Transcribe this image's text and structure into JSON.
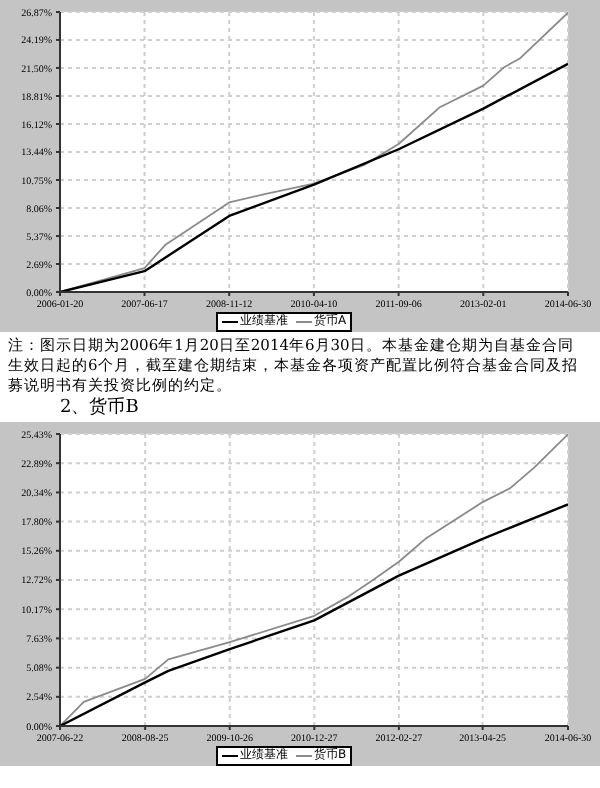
{
  "chart_data": [
    {
      "type": "line",
      "x": [
        "2006-01-20",
        "2007-06-17",
        "2007-10-20",
        "2008-11-12",
        "2009-06-15",
        "2010-04-10",
        "2011-02-10",
        "2011-09-06",
        "2012-05-10",
        "2013-02-01",
        "2013-06-10",
        "2013-09-10",
        "2014-06-30"
      ],
      "series": [
        {
          "name": "货币A",
          "color": "#8a8a8a",
          "values": [
            0,
            2.3,
            4.5,
            8.6,
            9.4,
            10.4,
            12.2,
            14.2,
            17.7,
            19.8,
            21.6,
            22.4,
            26.8
          ]
        },
        {
          "name": "业绩基准",
          "color": "#000000",
          "x": [
            "2006-01-20",
            "2007-06-17",
            "2008-11-12",
            "2010-04-10",
            "2011-09-06",
            "2013-02-01",
            "2014-06-30"
          ],
          "values": [
            0,
            2.0,
            7.3,
            10.3,
            13.7,
            17.6,
            21.9
          ]
        }
      ],
      "xlim": [
        "2006-01-20",
        "2014-06-30"
      ],
      "xticks": [
        "2006-01-20",
        "2007-06-17",
        "2008-11-12",
        "2010-04-10",
        "2011-09-06",
        "2013-02-01",
        "2014-06-30"
      ],
      "ylim": [
        0,
        26.87
      ],
      "yticks": [
        {
          "value": 0,
          "label": "0.00%"
        },
        {
          "value": 2.69,
          "label": "2.69%"
        },
        {
          "value": 5.37,
          "label": "5.37%"
        },
        {
          "value": 8.06,
          "label": "8.06%"
        },
        {
          "value": 10.75,
          "label": "10.75%"
        },
        {
          "value": 13.44,
          "label": "13.44%"
        },
        {
          "value": 16.12,
          "label": "16.12%"
        },
        {
          "value": 18.81,
          "label": "18.81%"
        },
        {
          "value": 21.5,
          "label": "21.50%"
        },
        {
          "value": 24.19,
          "label": "24.19%"
        },
        {
          "value": 26.87,
          "label": "26.87%"
        }
      ],
      "grid": true,
      "legend": "bottom",
      "marker": "none",
      "line_style": "solid",
      "annotations": [
        "注：图示日期为2006年1月20日至2014年6月30日。本基金建仓期为自基金合同生效日起的6个月，截至建仓期结束，本基金各项资产配置比例符合基金合同及招募说明书有关投资比例的约定。"
      ]
    },
    {
      "type": "line",
      "title": "2、货币B",
      "x": [
        "2007-06-22",
        "2007-10-20",
        "2008-08-25",
        "2008-12-20",
        "2009-10-26",
        "2010-12-27",
        "2011-06-10",
        "2011-10-10",
        "2012-02-27",
        "2012-07-10",
        "2013-04-25",
        "2013-09-10",
        "2014-01-10",
        "2014-06-30"
      ],
      "series": [
        {
          "name": "货币B",
          "color": "#8a8a8a",
          "values": [
            0,
            2.1,
            4.1,
            5.8,
            7.3,
            9.6,
            11.2,
            12.6,
            14.3,
            16.3,
            19.5,
            20.7,
            22.5,
            25.4
          ]
        },
        {
          "name": "业绩基准",
          "color": "#000000",
          "x": [
            "2007-06-22",
            "2008-08-25",
            "2008-12-20",
            "2009-10-26",
            "2010-12-27",
            "2012-02-27",
            "2013-04-25",
            "2014-06-30"
          ],
          "values": [
            0,
            3.8,
            4.8,
            6.7,
            9.2,
            13.1,
            16.3,
            19.3
          ]
        }
      ],
      "xlim": [
        "2007-06-22",
        "2014-06-30"
      ],
      "xticks": [
        "2007-06-22",
        "2008-08-25",
        "2009-10-26",
        "2010-12-27",
        "2012-02-27",
        "2013-04-25",
        "2014-06-30"
      ],
      "ylim": [
        0,
        25.43
      ],
      "yticks": [
        {
          "value": 0,
          "label": "0.00%"
        },
        {
          "value": 2.54,
          "label": "2.54%"
        },
        {
          "value": 5.08,
          "label": "5.08%"
        },
        {
          "value": 7.63,
          "label": "7.63%"
        },
        {
          "value": 10.17,
          "label": "10.17%"
        },
        {
          "value": 12.72,
          "label": "12.72%"
        },
        {
          "value": 15.26,
          "label": "15.26%"
        },
        {
          "value": 17.8,
          "label": "17.80%"
        },
        {
          "value": 20.34,
          "label": "20.34%"
        },
        {
          "value": 22.89,
          "label": "22.89%"
        },
        {
          "value": 25.43,
          "label": "25.43%"
        }
      ],
      "grid": true,
      "legend": "bottom",
      "marker": "none",
      "line_style": "solid"
    }
  ]
}
